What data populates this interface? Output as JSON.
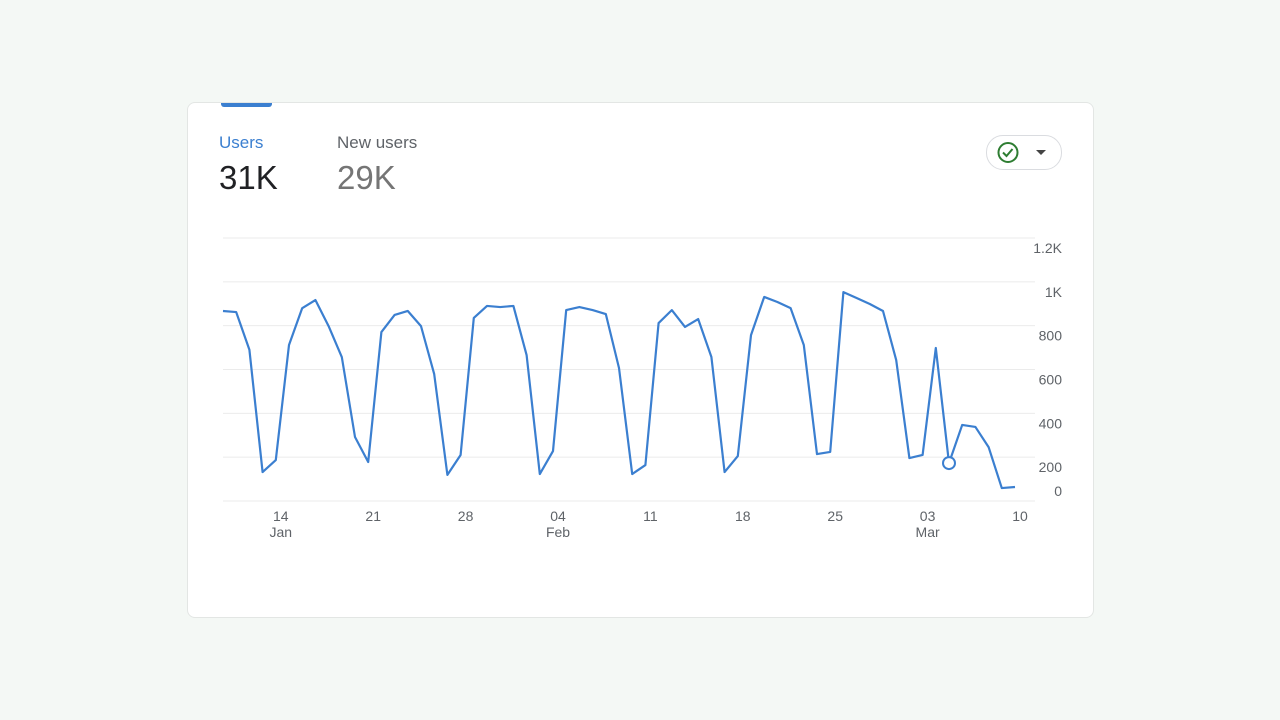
{
  "metrics": [
    {
      "label": "Users",
      "value": "31K"
    },
    {
      "label": "New users",
      "value": "29K"
    }
  ],
  "chart_data": {
    "type": "line",
    "categories": [
      null,
      null,
      null,
      null,
      "14",
      null,
      null,
      null,
      null,
      null,
      null,
      "21",
      null,
      null,
      null,
      null,
      null,
      null,
      "28",
      null,
      null,
      null,
      null,
      null,
      null,
      "04",
      null,
      null,
      null,
      null,
      null,
      null,
      "11",
      null,
      null,
      null,
      null,
      null,
      null,
      "18",
      null,
      null,
      null,
      null,
      null,
      null,
      "25",
      null,
      null,
      null,
      null,
      null,
      null,
      "03",
      null,
      null,
      null,
      null,
      null,
      null,
      "10"
    ],
    "x_sublabels": [
      null,
      null,
      null,
      null,
      "Jan",
      null,
      null,
      null,
      null,
      null,
      null,
      null,
      null,
      null,
      null,
      null,
      null,
      null,
      null,
      null,
      null,
      null,
      null,
      null,
      null,
      "Feb",
      null,
      null,
      null,
      null,
      null,
      null,
      null,
      null,
      null,
      null,
      null,
      null,
      null,
      null,
      null,
      null,
      null,
      null,
      null,
      null,
      null,
      null,
      null,
      null,
      null,
      null,
      null,
      "Mar",
      null,
      null,
      null,
      null,
      null,
      null,
      null
    ],
    "series": [
      {
        "name": "Users",
        "color": "#3b7fd0",
        "values": [
          867,
          862,
          690,
          132,
          187,
          712,
          880,
          917,
          798,
          657,
          292,
          178,
          771,
          849,
          867,
          798,
          579,
          119,
          210,
          835,
          890,
          885,
          890,
          666,
          123,
          228,
          871,
          885,
          871,
          853,
          607,
          123,
          164,
          812,
          871,
          794,
          830,
          657,
          132,
          205,
          757,
          931,
          908,
          880,
          712,
          214,
          224,
          953,
          926,
          899,
          867,
          643,
          196,
          210,
          698,
          173,
          347,
          338,
          246,
          59,
          64
        ]
      }
    ],
    "marker_index": 55,
    "ylim": [
      0,
      1200
    ],
    "yticks": [
      0,
      200,
      400,
      600,
      800,
      {
        "value": 1000,
        "label": "1K"
      },
      {
        "value": 1200,
        "label": "1.2K"
      }
    ],
    "grid": true
  }
}
